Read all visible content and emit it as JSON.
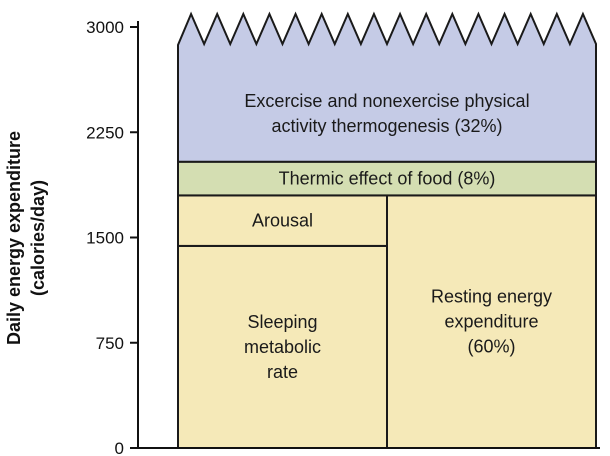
{
  "chart_data": {
    "type": "bar",
    "ylabel": [
      "Daily energy expenditure",
      "(calories/day)"
    ],
    "ylim": [
      0,
      3000
    ],
    "yticks": [
      0,
      750,
      1500,
      2250,
      3000
    ],
    "ytick_labels": [
      "0",
      "750",
      "1500",
      "2250",
      "3000"
    ],
    "top_edge": "zigzag",
    "segments": [
      {
        "id": "sleeping",
        "lines": [
          "Sleeping",
          "metabolic",
          "rate"
        ],
        "y0": 0,
        "y1": 1440,
        "column": "left",
        "color": "#f5e9b8"
      },
      {
        "id": "arousal",
        "lines": [
          "Arousal"
        ],
        "y0": 1440,
        "y1": 1800,
        "column": "left",
        "color": "#f5e9b8"
      },
      {
        "id": "resting",
        "lines": [
          "Resting energy",
          "expenditure",
          "(60%)"
        ],
        "y0": 0,
        "y1": 1800,
        "column": "right",
        "color": "#f5e9b8"
      },
      {
        "id": "thermic",
        "lines": [
          "Thermic effect of food (8%)"
        ],
        "y0": 1800,
        "y1": 2040,
        "column": "full",
        "color": "#d4deb2"
      },
      {
        "id": "activity",
        "lines": [
          "Excercise and nonexercise physical",
          "activity thermogenesis (32%)"
        ],
        "y0": 2040,
        "y1": 3000,
        "column": "full",
        "color": "#c5cbe6"
      }
    ],
    "outline_color": "#1a1a1a"
  }
}
